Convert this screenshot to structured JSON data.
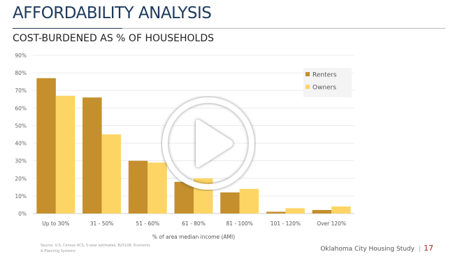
{
  "slide": {
    "title": "AFFORDABILITY ANALYSIS",
    "subtitle": "COST-BURDENED AS % OF HOUSEHOLDS",
    "source": "Source: U.S. Census ACS, 5-year estimates, B25106; Economic & Planning Systems",
    "footer": "Oklahoma City Housing Study",
    "separator": "|",
    "page_number": "17"
  },
  "overlay": {
    "icon": "play-icon"
  },
  "chart_data": {
    "type": "bar",
    "title": "",
    "xlabel": "% of area median income (AMI)",
    "ylabel": "",
    "ylim": [
      0,
      90
    ],
    "yticks": [
      "0%",
      "10%",
      "20%",
      "30%",
      "40%",
      "50%",
      "60%",
      "70%",
      "80%",
      "90%"
    ],
    "grid": true,
    "legend": "top-right",
    "categories": [
      "Up to 30%",
      "31 - 50%",
      "51 - 60%",
      "61 - 80%",
      "81 - 100%",
      "101 - 120%",
      "Over 120%"
    ],
    "series": [
      {
        "name": "Renters",
        "color": "#c48f2c",
        "values": [
          77,
          66,
          30,
          18,
          12,
          1,
          2
        ]
      },
      {
        "name": "Owners",
        "color": "#fdd565",
        "values": [
          67,
          45,
          29,
          20,
          14,
          3,
          4
        ]
      }
    ]
  }
}
